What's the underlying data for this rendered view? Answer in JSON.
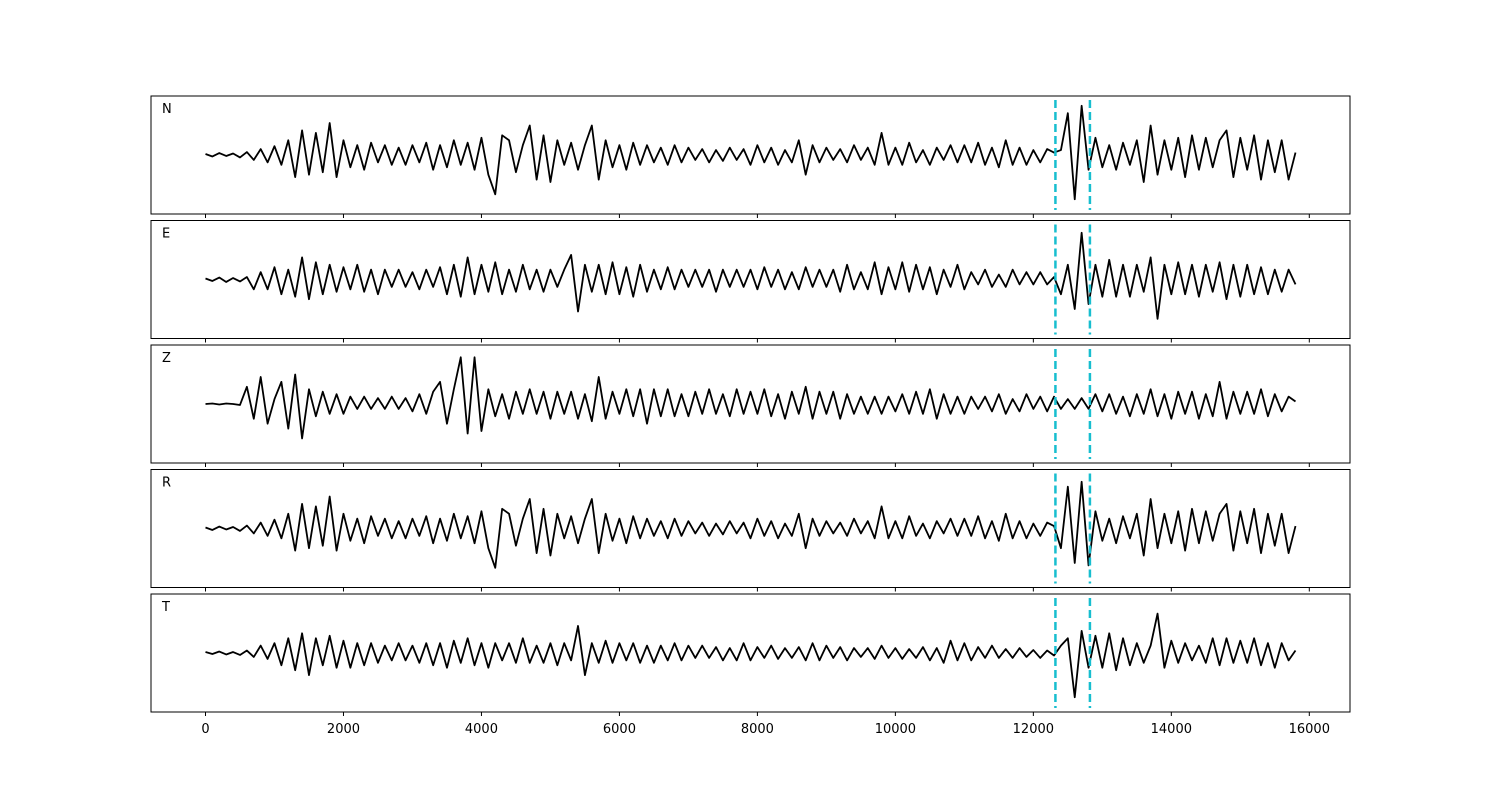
{
  "chart_data": {
    "type": "line",
    "subplots": true,
    "x": [
      0,
      100,
      200,
      300,
      400,
      500,
      600,
      700,
      800,
      900,
      1000,
      1100,
      1200,
      1300,
      1400,
      1500,
      1600,
      1700,
      1800,
      1900,
      2000,
      2100,
      2200,
      2300,
      2400,
      2500,
      2600,
      2700,
      2800,
      2900,
      3000,
      3100,
      3200,
      3300,
      3400,
      3500,
      3600,
      3700,
      3800,
      3900,
      4000,
      4100,
      4200,
      4300,
      4400,
      4500,
      4600,
      4700,
      4800,
      4900,
      5000,
      5100,
      5200,
      5300,
      5400,
      5500,
      5600,
      5700,
      5800,
      5900,
      6000,
      6100,
      6200,
      6300,
      6400,
      6500,
      6600,
      6700,
      6800,
      6900,
      7000,
      7100,
      7200,
      7300,
      7400,
      7500,
      7600,
      7700,
      7800,
      7900,
      8000,
      8100,
      8200,
      8300,
      8400,
      8500,
      8600,
      8700,
      8800,
      8900,
      9000,
      9100,
      9200,
      9300,
      9400,
      9500,
      9600,
      9700,
      9800,
      9900,
      10000,
      10100,
      10200,
      10300,
      10400,
      10500,
      10600,
      10700,
      10800,
      10900,
      11000,
      11100,
      11200,
      11300,
      11400,
      11500,
      11600,
      11700,
      11800,
      11900,
      12000,
      12100,
      12200,
      12300,
      12400,
      12500,
      12600,
      12700,
      12800,
      12900,
      13000,
      13100,
      13200,
      13300,
      13400,
      13500,
      13600,
      13700,
      13800,
      13900,
      14000,
      14100,
      14200,
      14300,
      14400,
      14500,
      14600,
      14700,
      14800,
      14900,
      15000,
      15100,
      15200,
      15300,
      15400,
      15500,
      15600,
      15700,
      15800
    ],
    "series": [
      {
        "name": "N",
        "color": "#000000",
        "values": [
          0.02,
          -0.03,
          0.04,
          -0.02,
          0.03,
          -0.05,
          0.06,
          -0.1,
          0.12,
          -0.15,
          0.18,
          -0.2,
          0.3,
          -0.45,
          0.5,
          -0.4,
          0.45,
          -0.35,
          0.65,
          -0.45,
          0.3,
          -0.25,
          0.2,
          -0.3,
          0.25,
          -0.15,
          0.2,
          -0.2,
          0.15,
          -0.2,
          0.2,
          -0.15,
          0.25,
          -0.3,
          0.2,
          -0.25,
          0.3,
          -0.2,
          0.25,
          -0.3,
          0.35,
          -0.4,
          -0.8,
          0.4,
          0.3,
          -0.35,
          0.2,
          0.6,
          -0.5,
          0.4,
          -0.55,
          0.3,
          -0.2,
          0.25,
          -0.3,
          0.2,
          0.6,
          -0.5,
          0.3,
          -0.25,
          0.2,
          -0.3,
          0.25,
          -0.2,
          0.2,
          -0.15,
          0.15,
          -0.2,
          0.2,
          -0.15,
          0.15,
          -0.1,
          0.12,
          -0.15,
          0.1,
          -0.12,
          0.15,
          -0.1,
          0.12,
          -0.2,
          0.2,
          -0.15,
          0.15,
          -0.2,
          0.1,
          -0.15,
          0.3,
          -0.4,
          0.2,
          -0.15,
          0.15,
          -0.1,
          0.12,
          -0.15,
          0.2,
          -0.1,
          0.15,
          -0.2,
          0.45,
          -0.2,
          0.15,
          -0.2,
          0.25,
          -0.15,
          0.1,
          -0.2,
          0.15,
          -0.1,
          0.2,
          -0.15,
          0.2,
          -0.15,
          0.25,
          -0.2,
          0.15,
          -0.25,
          0.3,
          -0.2,
          0.15,
          -0.2,
          0.1,
          -0.15,
          0.12,
          0.05,
          0.1,
          0.85,
          -0.9,
          1.0,
          -0.3,
          0.35,
          -0.25,
          0.2,
          -0.3,
          0.25,
          -0.2,
          0.3,
          -0.55,
          0.6,
          -0.4,
          0.3,
          -0.3,
          0.35,
          -0.45,
          0.4,
          -0.3,
          0.35,
          -0.25,
          0.3,
          0.5,
          -0.45,
          0.35,
          -0.3,
          0.4,
          -0.5,
          0.3,
          -0.35,
          0.3,
          -0.5,
          0.05
        ]
      },
      {
        "name": "E",
        "color": "#000000",
        "values": [
          0.02,
          -0.03,
          0.04,
          -0.05,
          0.03,
          -0.04,
          0.05,
          -0.2,
          0.15,
          -0.2,
          0.25,
          -0.3,
          0.2,
          -0.35,
          0.45,
          -0.4,
          0.35,
          -0.3,
          0.3,
          -0.25,
          0.25,
          -0.2,
          0.3,
          -0.25,
          0.2,
          -0.3,
          0.2,
          -0.15,
          0.2,
          -0.15,
          0.15,
          -0.2,
          0.2,
          -0.15,
          0.25,
          -0.3,
          0.3,
          -0.35,
          0.45,
          -0.3,
          0.3,
          -0.25,
          0.35,
          -0.3,
          0.2,
          -0.25,
          0.3,
          -0.2,
          0.2,
          -0.25,
          0.2,
          -0.15,
          0.2,
          0.5,
          -0.65,
          0.3,
          -0.25,
          0.3,
          -0.3,
          0.35,
          -0.3,
          0.25,
          -0.35,
          0.3,
          -0.25,
          0.2,
          -0.2,
          0.25,
          -0.2,
          0.2,
          -0.15,
          0.2,
          -0.15,
          0.2,
          -0.25,
          0.2,
          -0.15,
          0.2,
          -0.15,
          0.2,
          -0.2,
          0.25,
          -0.15,
          0.2,
          -0.2,
          0.15,
          -0.2,
          0.25,
          -0.15,
          0.2,
          -0.15,
          0.2,
          -0.25,
          0.3,
          -0.2,
          0.15,
          -0.2,
          0.35,
          -0.3,
          0.25,
          -0.2,
          0.35,
          -0.25,
          0.3,
          -0.2,
          0.25,
          -0.3,
          0.2,
          -0.15,
          0.3,
          -0.2,
          0.15,
          -0.1,
          0.2,
          -0.15,
          0.1,
          -0.15,
          0.2,
          -0.1,
          0.15,
          -0.1,
          0.15,
          -0.1,
          0.05,
          -0.3,
          0.3,
          -0.6,
          0.95,
          -0.5,
          0.3,
          -0.35,
          0.4,
          -0.35,
          0.3,
          -0.35,
          0.3,
          -0.25,
          0.45,
          -0.8,
          0.3,
          -0.3,
          0.35,
          -0.3,
          0.3,
          -0.35,
          0.3,
          -0.25,
          0.35,
          -0.4,
          0.3,
          -0.35,
          0.3,
          -0.3,
          0.25,
          -0.3,
          0.2,
          -0.25,
          0.2,
          -0.1
        ]
      },
      {
        "name": "Z",
        "color": "#000000",
        "values": [
          0,
          0.01,
          -0.01,
          0.01,
          0,
          -0.02,
          0.35,
          -0.3,
          0.55,
          -0.4,
          0.1,
          0.45,
          -0.5,
          0.6,
          -0.7,
          0.3,
          -0.25,
          0.25,
          -0.2,
          0.2,
          -0.2,
          0.15,
          -0.1,
          0.15,
          -0.1,
          0.12,
          -0.1,
          0.15,
          -0.1,
          0.12,
          -0.15,
          0.2,
          -0.2,
          0.25,
          0.45,
          -0.4,
          0.3,
          0.95,
          -0.6,
          0.95,
          -0.55,
          0.3,
          -0.25,
          0.2,
          -0.3,
          0.25,
          -0.2,
          0.3,
          -0.2,
          0.25,
          -0.3,
          0.25,
          -0.2,
          0.25,
          -0.3,
          0.2,
          -0.35,
          0.55,
          -0.3,
          0.25,
          -0.2,
          0.3,
          -0.25,
          0.3,
          -0.4,
          0.3,
          -0.25,
          0.3,
          -0.25,
          0.2,
          -0.25,
          0.25,
          -0.2,
          0.3,
          -0.2,
          0.2,
          -0.25,
          0.3,
          -0.2,
          0.25,
          -0.2,
          0.3,
          -0.25,
          0.2,
          -0.3,
          0.25,
          -0.2,
          0.35,
          -0.3,
          0.25,
          -0.2,
          0.25,
          -0.3,
          0.2,
          -0.2,
          0.15,
          -0.2,
          0.15,
          -0.2,
          0.15,
          -0.15,
          0.2,
          -0.2,
          0.25,
          -0.2,
          0.3,
          -0.3,
          0.2,
          -0.2,
          0.15,
          -0.2,
          0.15,
          -0.1,
          0.15,
          -0.15,
          0.2,
          -0.2,
          0.1,
          -0.15,
          0.2,
          -0.1,
          0.15,
          -0.15,
          0.15,
          -0.1,
          0.1,
          -0.1,
          0.12,
          -0.1,
          0.2,
          -0.15,
          0.2,
          -0.2,
          0.15,
          -0.25,
          0.2,
          -0.2,
          0.3,
          -0.25,
          0.2,
          -0.3,
          0.25,
          -0.2,
          0.25,
          -0.3,
          0.2,
          -0.25,
          0.45,
          -0.3,
          0.25,
          -0.2,
          0.25,
          -0.2,
          0.3,
          -0.25,
          0.2,
          -0.15,
          0.15,
          0.05
        ]
      },
      {
        "name": "R",
        "color": "#000000",
        "values": [
          0.02,
          -0.03,
          0.04,
          -0.02,
          0.03,
          -0.05,
          0.06,
          -0.1,
          0.12,
          -0.15,
          0.18,
          -0.2,
          0.3,
          -0.45,
          0.5,
          -0.4,
          0.45,
          -0.35,
          0.65,
          -0.45,
          0.3,
          -0.25,
          0.2,
          -0.3,
          0.25,
          -0.15,
          0.2,
          -0.2,
          0.15,
          -0.2,
          0.2,
          -0.15,
          0.25,
          -0.3,
          0.2,
          -0.25,
          0.3,
          -0.2,
          0.25,
          -0.3,
          0.35,
          -0.4,
          -0.8,
          0.4,
          0.3,
          -0.35,
          0.2,
          0.6,
          -0.5,
          0.4,
          -0.55,
          0.3,
          -0.2,
          0.25,
          -0.3,
          0.2,
          0.6,
          -0.5,
          0.3,
          -0.25,
          0.2,
          -0.3,
          0.25,
          -0.2,
          0.2,
          -0.15,
          0.15,
          -0.2,
          0.2,
          -0.15,
          0.15,
          -0.1,
          0.12,
          -0.15,
          0.1,
          -0.12,
          0.15,
          -0.1,
          0.12,
          -0.2,
          0.2,
          -0.15,
          0.15,
          -0.2,
          0.1,
          -0.15,
          0.3,
          -0.4,
          0.2,
          -0.15,
          0.15,
          -0.1,
          0.12,
          -0.15,
          0.2,
          -0.1,
          0.15,
          -0.2,
          0.45,
          -0.2,
          0.15,
          -0.2,
          0.25,
          -0.15,
          0.1,
          -0.2,
          0.15,
          -0.1,
          0.2,
          -0.15,
          0.2,
          -0.15,
          0.25,
          -0.2,
          0.15,
          -0.25,
          0.3,
          -0.2,
          0.15,
          -0.2,
          0.1,
          -0.15,
          0.12,
          0.05,
          -0.4,
          0.85,
          -0.7,
          0.95,
          -0.75,
          0.35,
          -0.25,
          0.2,
          -0.3,
          0.25,
          -0.2,
          0.3,
          -0.55,
          0.6,
          -0.4,
          0.3,
          -0.3,
          0.35,
          -0.45,
          0.4,
          -0.3,
          0.35,
          -0.25,
          0.3,
          0.5,
          -0.45,
          0.35,
          -0.3,
          0.4,
          -0.5,
          0.3,
          -0.35,
          0.3,
          -0.5,
          0.05
        ]
      },
      {
        "name": "T",
        "color": "#000000",
        "values": [
          0.02,
          -0.02,
          0.03,
          -0.03,
          0.02,
          -0.04,
          0.05,
          -0.08,
          0.15,
          -0.12,
          0.2,
          -0.25,
          0.3,
          -0.35,
          0.4,
          -0.45,
          0.3,
          -0.25,
          0.35,
          -0.3,
          0.25,
          -0.3,
          0.2,
          -0.25,
          0.2,
          -0.2,
          0.15,
          -0.15,
          0.2,
          -0.15,
          0.15,
          -0.2,
          0.2,
          -0.25,
          0.2,
          -0.3,
          0.25,
          -0.2,
          0.3,
          -0.25,
          0.2,
          -0.3,
          0.2,
          -0.15,
          0.2,
          -0.2,
          0.3,
          -0.2,
          0.15,
          -0.2,
          0.2,
          -0.25,
          0.2,
          -0.15,
          0.55,
          -0.45,
          0.2,
          -0.2,
          0.25,
          -0.2,
          0.2,
          -0.15,
          0.2,
          -0.2,
          0.15,
          -0.2,
          0.15,
          -0.15,
          0.2,
          -0.15,
          0.15,
          -0.1,
          0.15,
          -0.1,
          0.12,
          -0.15,
          0.1,
          -0.15,
          0.2,
          -0.15,
          0.12,
          -0.1,
          0.15,
          -0.12,
          0.1,
          -0.1,
          0.12,
          -0.15,
          0.2,
          -0.15,
          0.15,
          -0.1,
          0.12,
          -0.15,
          0.1,
          -0.08,
          0.1,
          -0.12,
          0.15,
          -0.1,
          0.1,
          -0.12,
          0.08,
          -0.1,
          0.12,
          -0.15,
          0.1,
          -0.2,
          0.25,
          -0.15,
          0.2,
          -0.15,
          0.12,
          -0.1,
          0.15,
          -0.1,
          0.08,
          -0.1,
          0.1,
          -0.08,
          0.06,
          -0.1,
          0.05,
          -0.05,
          0.15,
          0.3,
          -0.9,
          0.45,
          -0.3,
          0.35,
          -0.3,
          0.4,
          -0.35,
          0.3,
          -0.25,
          0.2,
          -0.2,
          0.15,
          0.8,
          -0.3,
          0.25,
          -0.2,
          0.2,
          -0.15,
          0.15,
          -0.2,
          0.3,
          -0.25,
          0.3,
          -0.2,
          0.25,
          -0.2,
          0.3,
          -0.25,
          0.2,
          -0.3,
          0.2,
          -0.15,
          0.05
        ]
      }
    ],
    "xlim": [
      -790,
      16590
    ],
    "xticks": [
      0,
      2000,
      4000,
      6000,
      8000,
      10000,
      12000,
      14000,
      16000
    ],
    "ylim": [
      -1.2,
      1.2
    ],
    "vlines": [
      12320,
      12820
    ],
    "vline_color": "#17becf"
  }
}
